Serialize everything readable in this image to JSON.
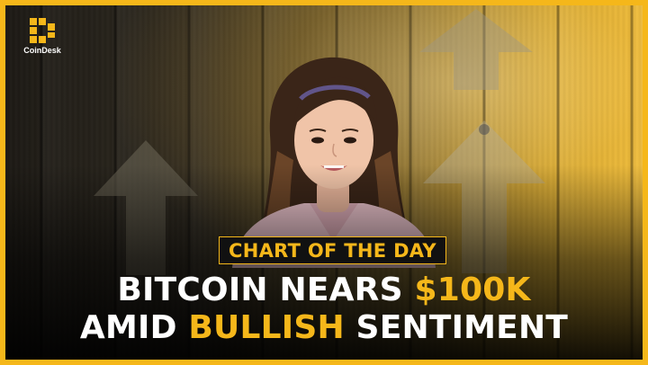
{
  "brand": {
    "name": "CoinDesk",
    "logo_icon": "coindesk-logo-icon",
    "accent_color": "#f5b71a"
  },
  "tag": {
    "text": "CHART OF THE DAY"
  },
  "headline": {
    "line1_prefix": "BITCOIN NEARS ",
    "line1_highlight": "$100K",
    "line2_prefix": "AMID ",
    "line2_highlight": "BULLISH",
    "line2_suffix": " SENTIMENT"
  },
  "background": {
    "icon": "up-arrow-icon",
    "texture": "wood-planks"
  },
  "colors": {
    "border": "#f5b71a",
    "highlight": "#f5b71a",
    "text": "#ffffff",
    "tag_background": "#111111"
  }
}
